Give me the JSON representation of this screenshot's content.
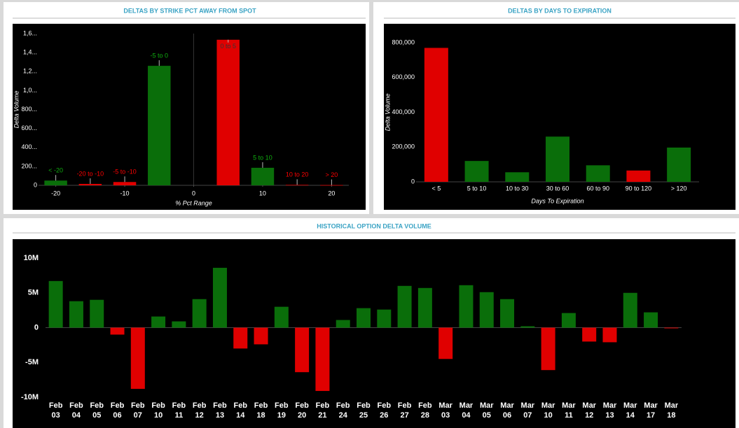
{
  "chart_data": [
    {
      "type": "bar",
      "title": "DELTAS BY STRIKE PCT AWAY FROM SPOT",
      "x_label": "% Pct Range",
      "y_label": "Delta Volume",
      "x": [
        -20,
        -15,
        -10,
        -5,
        5,
        10,
        15,
        20
      ],
      "point_labels": [
        "< -20",
        "-20 to -10",
        "-5 to -10",
        "-5 to 0",
        "0 to 5",
        "5 to 10",
        "10 to 20",
        "> 20"
      ],
      "values": [
        50000,
        15000,
        35000,
        1260000,
        1535000,
        185000,
        5000,
        3000
      ],
      "colors": [
        "#0a6e0a",
        "#e00000",
        "#e00000",
        "#0a6e0a",
        "#e00000",
        "#0a6e0a",
        "#e00000",
        "#e00000"
      ],
      "xlim": [
        -22.5,
        22.5
      ],
      "xticks": [
        -20,
        -10,
        0,
        10,
        20
      ],
      "ylim": [
        0,
        1600000
      ],
      "yticks": [
        0,
        {
          "value": 200000,
          "label": "200..."
        },
        {
          "value": 400000,
          "label": "400..."
        },
        {
          "value": 600000,
          "label": "600..."
        },
        {
          "value": 800000,
          "label": "800..."
        },
        {
          "value": 1000000,
          "label": "1,0..."
        },
        {
          "value": 1200000,
          "label": "1,2..."
        },
        {
          "value": 1400000,
          "label": "1,4..."
        },
        {
          "value": 1600000,
          "label": "1,6..."
        }
      ]
    },
    {
      "type": "bar",
      "title": "DELTAS BY DAYS TO EXPIRATION",
      "x_label": "Days To Expiration",
      "y_label": "Delta Volume",
      "categories": [
        "< 5",
        "5 to 10",
        "10 to 30",
        "30 to 60",
        "60 to 90",
        "90 to 120",
        "> 120"
      ],
      "values": [
        770000,
        120000,
        55000,
        260000,
        95000,
        65000,
        197000
      ],
      "colors": [
        "#e00000",
        "#0a6e0a",
        "#0a6e0a",
        "#0a6e0a",
        "#0a6e0a",
        "#e00000",
        "#0a6e0a"
      ],
      "ylim": [
        0,
        800000
      ],
      "yticks": [
        0,
        {
          "value": 200000,
          "label": "200,000"
        },
        {
          "value": 400000,
          "label": "400,000"
        },
        {
          "value": 600000,
          "label": "600,000"
        },
        {
          "value": 800000,
          "label": "800,000"
        }
      ]
    },
    {
      "type": "bar",
      "title": "HISTORICAL OPTION DELTA VOLUME",
      "categories": [
        "Feb 03",
        "Feb 04",
        "Feb 05",
        "Feb 06",
        "Feb 07",
        "Feb 10",
        "Feb 11",
        "Feb 12",
        "Feb 13",
        "Feb 14",
        "Feb 18",
        "Feb 19",
        "Feb 20",
        "Feb 21",
        "Feb 24",
        "Feb 25",
        "Feb 26",
        "Feb 27",
        "Feb 28",
        "Mar 03",
        "Mar 04",
        "Mar 05",
        "Mar 06",
        "Mar 07",
        "Mar 10",
        "Mar 11",
        "Mar 12",
        "Mar 13",
        "Mar 14",
        "Mar 17",
        "Mar 18"
      ],
      "values": [
        6700000,
        3800000,
        4000000,
        -1000000,
        -8800000,
        1600000,
        900000,
        4100000,
        8600000,
        -3000000,
        -2400000,
        3000000,
        -6400000,
        -9100000,
        1100000,
        2800000,
        2600000,
        6000000,
        5700000,
        -4500000,
        6100000,
        5100000,
        4100000,
        200000,
        -6100000,
        2100000,
        -2000000,
        -2100000,
        5000000,
        2200000,
        -100000
      ],
      "color": "#0a6e0a",
      "negative_color": "#e00000",
      "ylim": [
        -10000000,
        10000000
      ],
      "yticks": [
        {
          "value": -10000000,
          "label": "-10M"
        },
        {
          "value": -5000000,
          "label": "-5M"
        },
        0,
        {
          "value": 5000000,
          "label": "5M"
        },
        {
          "value": 10000000,
          "label": "10M"
        }
      ]
    }
  ]
}
